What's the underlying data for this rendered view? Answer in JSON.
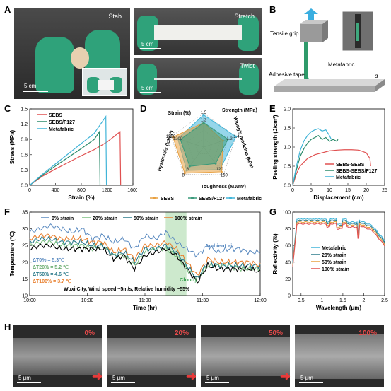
{
  "panels": {
    "A": {
      "letter": "A",
      "stab": "Stab",
      "stretch": "Stretch",
      "twist": "Twist",
      "scale1": "5 cm",
      "scale2": "5 cm",
      "scale3": "5 cm"
    },
    "B": {
      "letter": "B",
      "tensile": "Tensile grip",
      "metafabric": "Metafabric",
      "adhesive": "Adhesive tape",
      "d": "d"
    },
    "C": {
      "letter": "C"
    },
    "D": {
      "letter": "D"
    },
    "E": {
      "letter": "E"
    },
    "F": {
      "letter": "F",
      "ambient": "Ambient air",
      "cloudy": "Cloudy",
      "conditions": "Wuxi City, Wind speed ~5m/s, Relative humidity ~55%",
      "dt0": "ΔT0% = 5.3℃",
      "dt20": "ΔT20% = 5.2 ℃",
      "dt50": "ΔT50% = 4.6 ℃",
      "dt100": "ΔT100% = 3.7 ℃"
    },
    "G": {
      "letter": "G"
    },
    "H": {
      "letter": "H",
      "labels": [
        "0%",
        "20%",
        "50%",
        "100%"
      ],
      "scale": "5 μm"
    }
  },
  "chart_data": [
    {
      "id": "C",
      "type": "line",
      "xlabel": "Strain (%)",
      "ylabel": "Stress (MPa)",
      "xlim": [
        0,
        1600
      ],
      "ylim": [
        0,
        1.5
      ],
      "xticks": [
        0,
        400,
        800,
        1200,
        1600
      ],
      "yticks": [
        0.0,
        0.3,
        0.6,
        0.9,
        1.2,
        1.5
      ],
      "series": [
        {
          "name": "SEBS",
          "color": "#e05050",
          "x": [
            0,
            200,
            400,
            600,
            800,
            1000,
            1200,
            1400,
            1410
          ],
          "y": [
            0,
            0.18,
            0.32,
            0.45,
            0.58,
            0.7,
            0.85,
            1.05,
            0.0
          ]
        },
        {
          "name": "SEBS/F127",
          "color": "#2a8a6a",
          "x": [
            0,
            200,
            400,
            600,
            800,
            1000,
            1080,
            1090
          ],
          "y": [
            0,
            0.2,
            0.38,
            0.55,
            0.72,
            0.9,
            1.05,
            0.0
          ]
        },
        {
          "name": "Metafabric",
          "color": "#40b4d8",
          "x": [
            0,
            200,
            400,
            600,
            800,
            1000,
            1180,
            1190
          ],
          "y": [
            0,
            0.22,
            0.42,
            0.62,
            0.82,
            1.02,
            1.35,
            0.0
          ]
        }
      ]
    },
    {
      "id": "D",
      "type": "radar",
      "axes": [
        "Strength (MPa)",
        "Young's modulus (kPa)",
        "Toughness (MJ/m³)",
        "Hysteresis (kJ/m³)",
        "Strain (%)"
      ],
      "axis_max_labels": [
        "1.5",
        "1.4",
        "150",
        "8",
        "1500"
      ],
      "axis_mid_labels": [
        "1.2",
        "1.2",
        "120",
        "6",
        "1200"
      ],
      "series": [
        {
          "name": "SEBS",
          "color": "#e8a040",
          "values": [
            0.72,
            0.6,
            0.9,
            0.95,
            0.95
          ]
        },
        {
          "name": "SEBS/F127",
          "color": "#3a9a7a",
          "values": [
            0.72,
            0.75,
            0.6,
            0.7,
            0.72
          ]
        },
        {
          "name": "Metafabric",
          "color": "#40b4d8",
          "values": [
            0.95,
            1.0,
            0.82,
            0.85,
            0.8
          ]
        }
      ]
    },
    {
      "id": "E",
      "type": "line",
      "xlabel": "Displacement (cm)",
      "ylabel": "Peeling strength (J/cm²)",
      "xlim": [
        0,
        25
      ],
      "ylim": [
        0,
        2.0
      ],
      "xticks": [
        0,
        5,
        10,
        15,
        20,
        25
      ],
      "yticks": [
        0.0,
        0.5,
        1.0,
        1.5,
        2.0
      ],
      "series": [
        {
          "name": "SEBS-SEBS",
          "color": "#e05050",
          "x": [
            0,
            1,
            2,
            4,
            6,
            8,
            10,
            12,
            14,
            16,
            18,
            20,
            21,
            21.2
          ],
          "y": [
            0,
            0.3,
            0.5,
            0.7,
            0.8,
            0.85,
            0.9,
            0.92,
            0.93,
            0.93,
            0.92,
            0.85,
            0.7,
            0.5
          ]
        },
        {
          "name": "SEBS-SEBS/F127",
          "color": "#2a8a6a",
          "x": [
            0,
            1,
            2,
            3,
            4,
            5,
            6,
            7,
            8,
            9,
            10,
            11,
            12,
            12.3
          ],
          "y": [
            0,
            0.4,
            0.75,
            0.95,
            1.1,
            1.2,
            1.25,
            1.3,
            1.2,
            1.25,
            1.15,
            1.2,
            1.15,
            1.2
          ]
        },
        {
          "name": "Metafabric",
          "color": "#40b4d8",
          "x": [
            0,
            1,
            2,
            3,
            4,
            5,
            6,
            7,
            8,
            9,
            10,
            10.5
          ],
          "y": [
            0,
            0.5,
            0.9,
            1.15,
            1.3,
            1.4,
            1.45,
            1.48,
            1.42,
            1.45,
            1.3,
            1.2
          ]
        }
      ]
    },
    {
      "id": "F",
      "type": "line",
      "xlabel": "Time (hr)",
      "ylabel": "Temperature (℃)",
      "xticks": [
        "10:00",
        "10:30",
        "11:00",
        "11:30",
        "12:00"
      ],
      "ylim": [
        10,
        35
      ],
      "yticks": [
        10,
        15,
        20,
        25,
        30,
        35
      ],
      "series": [
        {
          "name": "0% strain",
          "color": "#5a8ac0",
          "values": [
            29,
            30,
            31,
            30,
            29,
            30,
            27,
            28,
            26,
            27,
            24,
            28,
            27,
            29,
            26,
            24,
            22,
            25,
            23,
            24,
            24,
            23,
            23
          ]
        },
        {
          "name": "20% strain",
          "color": "#7ac080",
          "values": [
            25,
            26,
            26,
            25,
            25,
            25,
            24,
            25,
            22,
            22,
            19,
            23,
            24,
            24,
            22,
            18,
            15,
            19,
            19,
            19,
            18,
            18,
            18
          ]
        },
        {
          "name": "50% strain",
          "color": "#2a7a8a",
          "values": [
            26,
            27,
            27,
            26,
            26,
            26,
            25,
            25,
            22,
            23,
            20,
            24,
            24,
            25,
            23,
            19,
            15,
            20,
            19,
            19,
            19,
            19,
            19
          ]
        },
        {
          "name": "100% strain",
          "color": "#e88030",
          "values": [
            27,
            28,
            28,
            27,
            27,
            27,
            26,
            26,
            23,
            24,
            21,
            25,
            25,
            26,
            24,
            20,
            16,
            21,
            20,
            20,
            20,
            20,
            19
          ]
        },
        {
          "name": "Ambient",
          "color": "#000000",
          "values": [
            24,
            25,
            25,
            24,
            24,
            24,
            24,
            24,
            21,
            22,
            18,
            22,
            23,
            24,
            22,
            18,
            14,
            19,
            18,
            18,
            18,
            18,
            17
          ]
        }
      ]
    },
    {
      "id": "G",
      "type": "line",
      "xlabel": "Wavelength (μm)",
      "ylabel": "Reflectivity (%)",
      "xlim": [
        0.3,
        2.5
      ],
      "ylim": [
        0,
        100
      ],
      "xticks": [
        0.5,
        1.0,
        1.5,
        2.0,
        2.5
      ],
      "yticks": [
        0,
        20,
        40,
        60,
        80,
        100
      ],
      "series": [
        {
          "name": "Metafabric",
          "color": "#40b4d8"
        },
        {
          "name": "20% strain",
          "color": "#2a7a8a"
        },
        {
          "name": "50% strain",
          "color": "#e8a040"
        },
        {
          "name": "100% strain",
          "color": "#e05050"
        }
      ]
    }
  ]
}
